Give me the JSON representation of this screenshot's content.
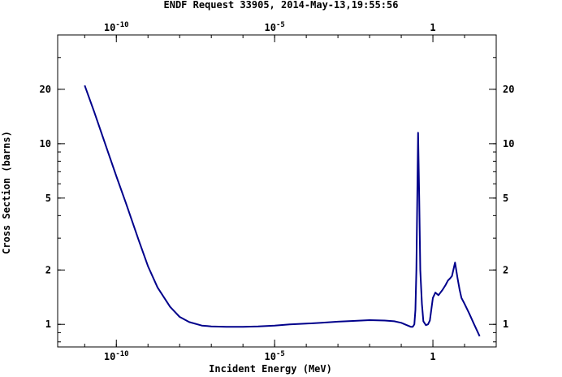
{
  "chart_data": {
    "type": "line",
    "title": "ENDF Request 33905, 2014-May-13,19:55:56",
    "xlabel": "Incident Energy (MeV)",
    "ylabel": "Cross Section (barns)",
    "x_scale": "log",
    "y_scale": "log",
    "xlim": [
      1.4e-12,
      100
    ],
    "ylim": [
      0.75,
      40
    ],
    "x_major_ticks": [
      {
        "value": 1e-10,
        "label": "10-10"
      },
      {
        "value": 1e-05,
        "label": "10-5"
      },
      {
        "value": 1,
        "label": "1"
      }
    ],
    "y_major_ticks": [
      {
        "value": 1,
        "label": "1"
      },
      {
        "value": 2,
        "label": "2"
      },
      {
        "value": 5,
        "label": "5"
      },
      {
        "value": 10,
        "label": "10"
      },
      {
        "value": 20,
        "label": "20"
      }
    ],
    "grid": false,
    "line_color": "#00008b",
    "series": [
      {
        "x": [
          1e-11,
          2e-11,
          5e-11,
          1e-10,
          2e-10,
          5e-10,
          1e-09,
          2e-09,
          5e-09,
          1e-08,
          2e-08,
          5e-08,
          1e-07,
          3e-07,
          1e-06,
          3e-06,
          1e-05,
          3e-05,
          0.0001,
          0.0003,
          0.001,
          0.003,
          0.01,
          0.03,
          0.06,
          0.1,
          0.15,
          0.2,
          0.23,
          0.26,
          0.28,
          0.3,
          0.32,
          0.34,
          0.37,
          0.4,
          0.45,
          0.5,
          0.6,
          0.7,
          0.8,
          1.0,
          1.2,
          1.5,
          2.0,
          2.5,
          3.0,
          3.5,
          4.0,
          5.0,
          6.0,
          7.0,
          8.0,
          10.0,
          14.0,
          20.0,
          30.0
        ],
        "y": [
          21.0,
          15.0,
          9.4,
          6.6,
          4.7,
          2.95,
          2.1,
          1.6,
          1.25,
          1.1,
          1.03,
          0.985,
          0.975,
          0.97,
          0.97,
          0.975,
          0.985,
          1.0,
          1.01,
          1.02,
          1.035,
          1.045,
          1.055,
          1.05,
          1.04,
          1.02,
          0.99,
          0.97,
          0.97,
          1.0,
          1.2,
          2.0,
          5.0,
          11.5,
          5.0,
          2.0,
          1.3,
          1.04,
          0.99,
          1.0,
          1.05,
          1.4,
          1.5,
          1.45,
          1.55,
          1.65,
          1.75,
          1.8,
          1.85,
          2.2,
          1.8,
          1.55,
          1.4,
          1.3,
          1.15,
          1.0,
          0.86
        ]
      }
    ]
  }
}
